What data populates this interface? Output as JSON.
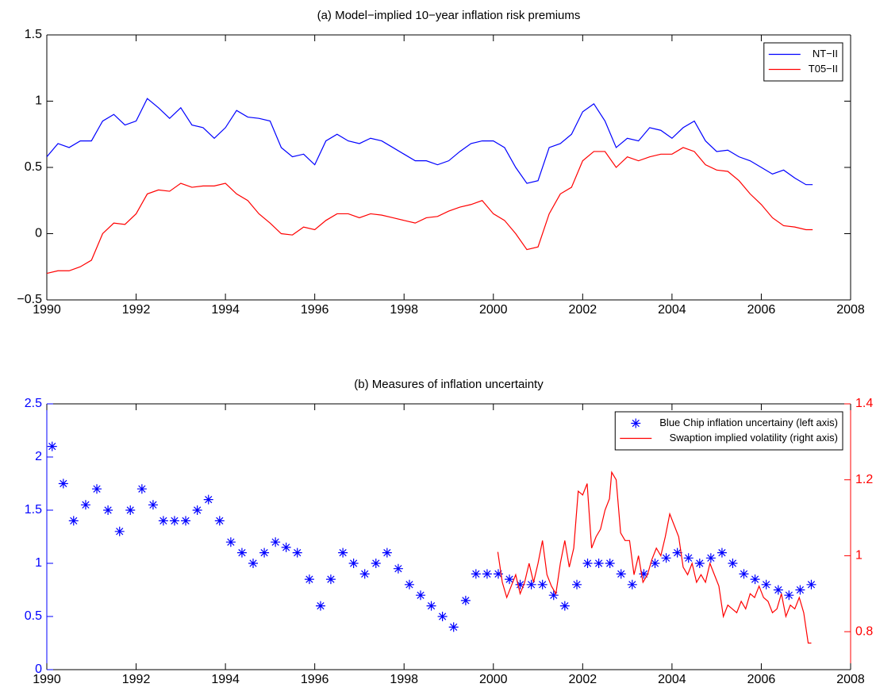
{
  "chart_data": [
    {
      "type": "line",
      "title": "(a) Model−implied 10−year inflation risk premiums",
      "xlim": [
        1990,
        2008
      ],
      "xticks": [
        1990,
        1992,
        1994,
        1996,
        1998,
        2000,
        2002,
        2004,
        2006,
        2008
      ],
      "ylim": [
        -0.5,
        1.5
      ],
      "yticks": [
        {
          "value": -0.5,
          "label": "−0.5"
        },
        0,
        0.5,
        1,
        1.5
      ],
      "legend": "upper right",
      "grid": false,
      "x": [
        1990.0,
        1990.25,
        1990.5,
        1990.75,
        1991.0,
        1991.25,
        1991.5,
        1991.75,
        1992.0,
        1992.25,
        1992.5,
        1992.75,
        1993.0,
        1993.25,
        1993.5,
        1993.75,
        1994.0,
        1994.25,
        1994.5,
        1994.75,
        1995.0,
        1995.25,
        1995.5,
        1995.75,
        1996.0,
        1996.25,
        1996.5,
        1996.75,
        1997.0,
        1997.25,
        1997.5,
        1997.75,
        1998.0,
        1998.25,
        1998.5,
        1998.75,
        1999.0,
        1999.25,
        1999.5,
        1999.75,
        2000.0,
        2000.25,
        2000.5,
        2000.75,
        2001.0,
        2001.25,
        2001.5,
        2001.75,
        2002.0,
        2002.25,
        2002.5,
        2002.75,
        2003.0,
        2003.25,
        2003.5,
        2003.75,
        2004.0,
        2004.25,
        2004.5,
        2004.75,
        2005.0,
        2005.25,
        2005.5,
        2005.75,
        2006.0,
        2006.25,
        2006.5,
        2006.75,
        2007.0,
        2007.15
      ],
      "series": [
        {
          "name": "NT−II",
          "type": "line",
          "color": "#0000ff",
          "values": [
            0.58,
            0.68,
            0.65,
            0.7,
            0.7,
            0.85,
            0.9,
            0.82,
            0.85,
            1.02,
            0.95,
            0.87,
            0.95,
            0.82,
            0.8,
            0.72,
            0.8,
            0.93,
            0.88,
            0.87,
            0.85,
            0.65,
            0.58,
            0.6,
            0.52,
            0.7,
            0.75,
            0.7,
            0.68,
            0.72,
            0.7,
            0.65,
            0.6,
            0.55,
            0.55,
            0.52,
            0.55,
            0.62,
            0.68,
            0.7,
            0.7,
            0.65,
            0.5,
            0.38,
            0.4,
            0.65,
            0.68,
            0.75,
            0.92,
            0.98,
            0.85,
            0.65,
            0.72,
            0.7,
            0.8,
            0.78,
            0.72,
            0.8,
            0.85,
            0.7,
            0.62,
            0.63,
            0.58,
            0.55,
            0.5,
            0.45,
            0.48,
            0.42,
            0.37,
            0.37
          ]
        },
        {
          "name": "T05−II",
          "type": "line",
          "color": "#ff0000",
          "values": [
            -0.3,
            -0.28,
            -0.28,
            -0.25,
            -0.2,
            0.0,
            0.08,
            0.07,
            0.15,
            0.3,
            0.33,
            0.32,
            0.38,
            0.35,
            0.36,
            0.36,
            0.38,
            0.3,
            0.25,
            0.15,
            0.08,
            0.0,
            -0.01,
            0.05,
            0.03,
            0.1,
            0.15,
            0.15,
            0.12,
            0.15,
            0.14,
            0.12,
            0.1,
            0.08,
            0.12,
            0.13,
            0.17,
            0.2,
            0.22,
            0.25,
            0.15,
            0.1,
            0.0,
            -0.12,
            -0.1,
            0.15,
            0.3,
            0.35,
            0.55,
            0.62,
            0.62,
            0.5,
            0.58,
            0.55,
            0.58,
            0.6,
            0.6,
            0.65,
            0.62,
            0.52,
            0.48,
            0.47,
            0.4,
            0.3,
            0.22,
            0.12,
            0.06,
            0.05,
            0.03,
            0.03
          ]
        }
      ]
    },
    {
      "type": "line",
      "title": "(b) Measures of inflation uncertainty",
      "xlim": [
        1990,
        2008
      ],
      "xticks": [
        1990,
        1992,
        1994,
        1996,
        1998,
        2000,
        2002,
        2004,
        2006,
        2008
      ],
      "ylim": [
        0,
        2.5
      ],
      "yticks": [
        0,
        0.5,
        1,
        1.5,
        2,
        2.5
      ],
      "ycolor": "#0000ff",
      "y2lim": [
        0.7,
        1.4
      ],
      "y2ticks": [
        0.8,
        1,
        1.2,
        1.4
      ],
      "y2color": "#ff0000",
      "legend": "upper right",
      "grid": false,
      "series": [
        {
          "name": "Blue Chip inflation uncertainy (left axis)",
          "type": "scatter",
          "color": "#0000ff",
          "x": [
            1990.12,
            1990.37,
            1990.6,
            1990.87,
            1991.12,
            1991.37,
            1991.63,
            1991.87,
            1992.13,
            1992.38,
            1992.61,
            1992.86,
            1993.11,
            1993.37,
            1993.62,
            1993.87,
            1994.12,
            1994.37,
            1994.62,
            1994.87,
            1995.12,
            1995.36,
            1995.61,
            1995.88,
            1996.13,
            1996.36,
            1996.63,
            1996.87,
            1997.12,
            1997.37,
            1997.62,
            1997.87,
            1998.12,
            1998.37,
            1998.61,
            1998.86,
            1999.11,
            1999.38,
            1999.61,
            1999.86,
            2000.11,
            2000.36,
            2000.6,
            2000.85,
            2001.1,
            2001.35,
            2001.6,
            2001.87,
            2002.11,
            2002.36,
            2002.61,
            2002.86,
            2003.11,
            2003.37,
            2003.62,
            2003.87,
            2004.12,
            2004.37,
            2004.62,
            2004.87,
            2005.12,
            2005.36,
            2005.61,
            2005.86,
            2006.11,
            2006.38,
            2006.62,
            2006.87,
            2007.12
          ],
          "values": [
            2.1,
            1.75,
            1.4,
            1.55,
            1.7,
            1.5,
            1.3,
            1.5,
            1.7,
            1.55,
            1.4,
            1.4,
            1.4,
            1.5,
            1.6,
            1.4,
            1.2,
            1.1,
            1.0,
            1.1,
            1.2,
            1.15,
            1.1,
            0.85,
            0.6,
            0.85,
            1.1,
            1.0,
            0.9,
            1.0,
            1.1,
            0.95,
            0.8,
            0.7,
            0.6,
            0.5,
            0.4,
            0.65,
            0.9,
            0.9,
            0.9,
            0.85,
            0.8,
            0.8,
            0.8,
            0.7,
            0.6,
            0.8,
            1.0,
            1.0,
            1.0,
            0.9,
            0.8,
            0.9,
            1.0,
            1.05,
            1.1,
            1.05,
            1.0,
            1.05,
            1.1,
            1.0,
            0.9,
            0.85,
            0.8,
            0.75,
            0.7,
            0.75,
            0.8
          ]
        },
        {
          "name": "Swaption implied volatility (right axis)",
          "type": "line",
          "axis": "y2",
          "color": "#ff0000",
          "x": [
            2000.1,
            2000.2,
            2000.3,
            2000.4,
            2000.5,
            2000.6,
            2000.7,
            2000.8,
            2000.9,
            2001.0,
            2001.1,
            2001.2,
            2001.3,
            2001.4,
            2001.5,
            2001.6,
            2001.7,
            2001.8,
            2001.9,
            2002.0,
            2002.1,
            2002.2,
            2002.3,
            2002.4,
            2002.5,
            2002.6,
            2002.65,
            2002.75,
            2002.85,
            2002.95,
            2003.05,
            2003.15,
            2003.25,
            2003.35,
            2003.45,
            2003.55,
            2003.65,
            2003.75,
            2003.85,
            2003.95,
            2004.05,
            2004.15,
            2004.25,
            2004.35,
            2004.45,
            2004.55,
            2004.65,
            2004.75,
            2004.85,
            2004.95,
            2005.05,
            2005.15,
            2005.25,
            2005.35,
            2005.45,
            2005.55,
            2005.65,
            2005.75,
            2005.85,
            2005.95,
            2006.05,
            2006.15,
            2006.25,
            2006.35,
            2006.45,
            2006.55,
            2006.65,
            2006.75,
            2006.85,
            2006.95,
            2007.05,
            2007.12
          ],
          "values": [
            1.01,
            0.93,
            0.89,
            0.92,
            0.95,
            0.9,
            0.93,
            0.98,
            0.93,
            0.98,
            1.04,
            0.95,
            0.92,
            0.9,
            0.98,
            1.04,
            0.97,
            1.02,
            1.17,
            1.16,
            1.19,
            1.02,
            1.05,
            1.07,
            1.12,
            1.15,
            1.22,
            1.2,
            1.06,
            1.04,
            1.04,
            0.95,
            1.0,
            0.93,
            0.95,
            0.99,
            1.02,
            1.0,
            1.05,
            1.11,
            1.08,
            1.05,
            0.97,
            0.95,
            0.98,
            0.93,
            0.95,
            0.93,
            0.98,
            0.95,
            0.92,
            0.84,
            0.87,
            0.86,
            0.85,
            0.88,
            0.86,
            0.9,
            0.89,
            0.92,
            0.89,
            0.88,
            0.85,
            0.86,
            0.9,
            0.84,
            0.87,
            0.86,
            0.89,
            0.85,
            0.77,
            0.77
          ]
        }
      ]
    }
  ]
}
